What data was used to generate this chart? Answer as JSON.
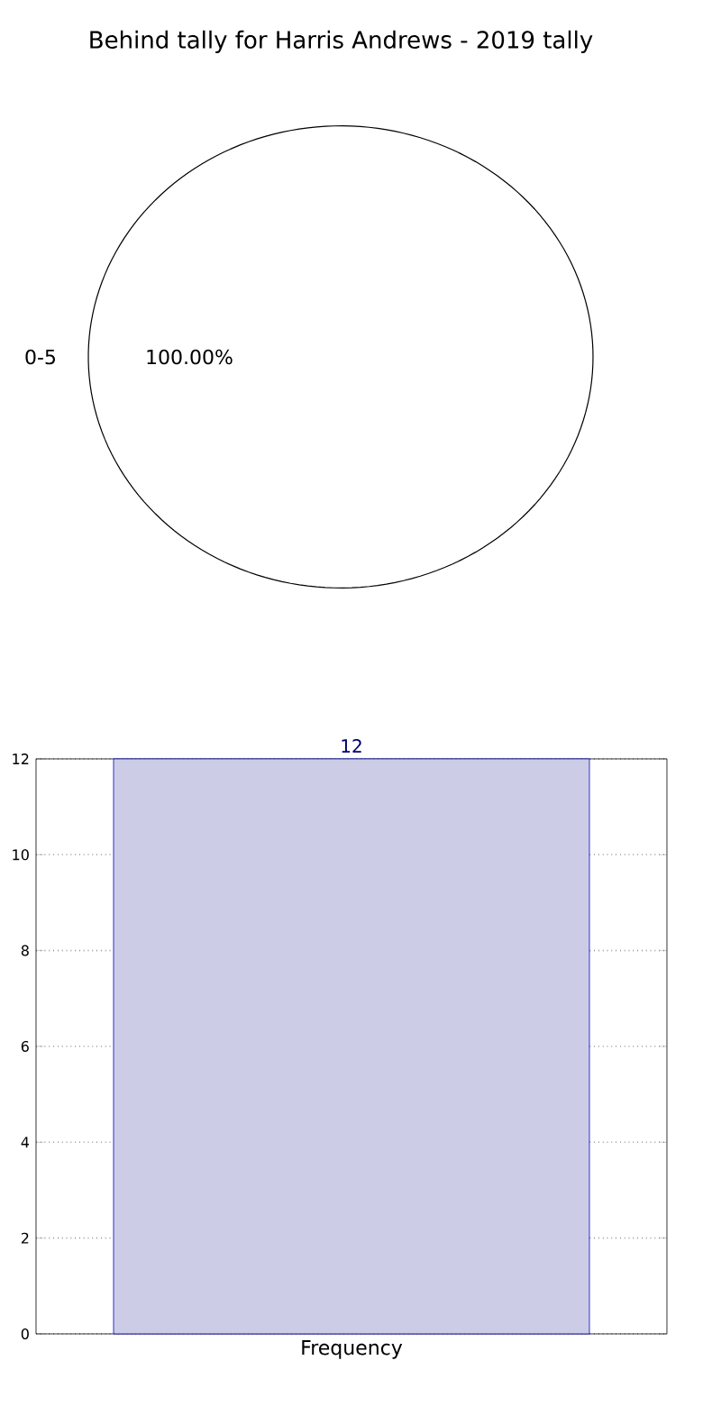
{
  "chart_data": [
    {
      "type": "pie",
      "title": "Behind tally for Harris Andrews - 2019 tally",
      "categories": [
        "0-5"
      ],
      "values": [
        100
      ],
      "colors": [
        "#ffffff"
      ],
      "value_labels": [
        "100.00%"
      ]
    },
    {
      "type": "bar",
      "categories": [
        "Frequency"
      ],
      "values": [
        12
      ],
      "color": "#cccce6",
      "ylim": [
        0,
        12
      ],
      "yticks": [
        0,
        2,
        4,
        6,
        8,
        10,
        12
      ],
      "grid": true,
      "data_labels": true
    }
  ]
}
